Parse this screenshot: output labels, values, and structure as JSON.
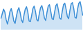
{
  "chart_data": {
    "type": "area",
    "color": "#3d8fd6",
    "tick_labels": false,
    "values": [
      40,
      55,
      70,
      60,
      35,
      20,
      38,
      62,
      72,
      55,
      30,
      22,
      45,
      65,
      75,
      58,
      34,
      25,
      50,
      70,
      78,
      60,
      30,
      28,
      48,
      72,
      80,
      62,
      35,
      30,
      55,
      75,
      82,
      65,
      40,
      32,
      58,
      80,
      85,
      62,
      38,
      35,
      60,
      82,
      88,
      66,
      40,
      36,
      62,
      85,
      90,
      70,
      45,
      38,
      65,
      88,
      92,
      72,
      42,
      40,
      70,
      90,
      95,
      75,
      50
    ]
  }
}
